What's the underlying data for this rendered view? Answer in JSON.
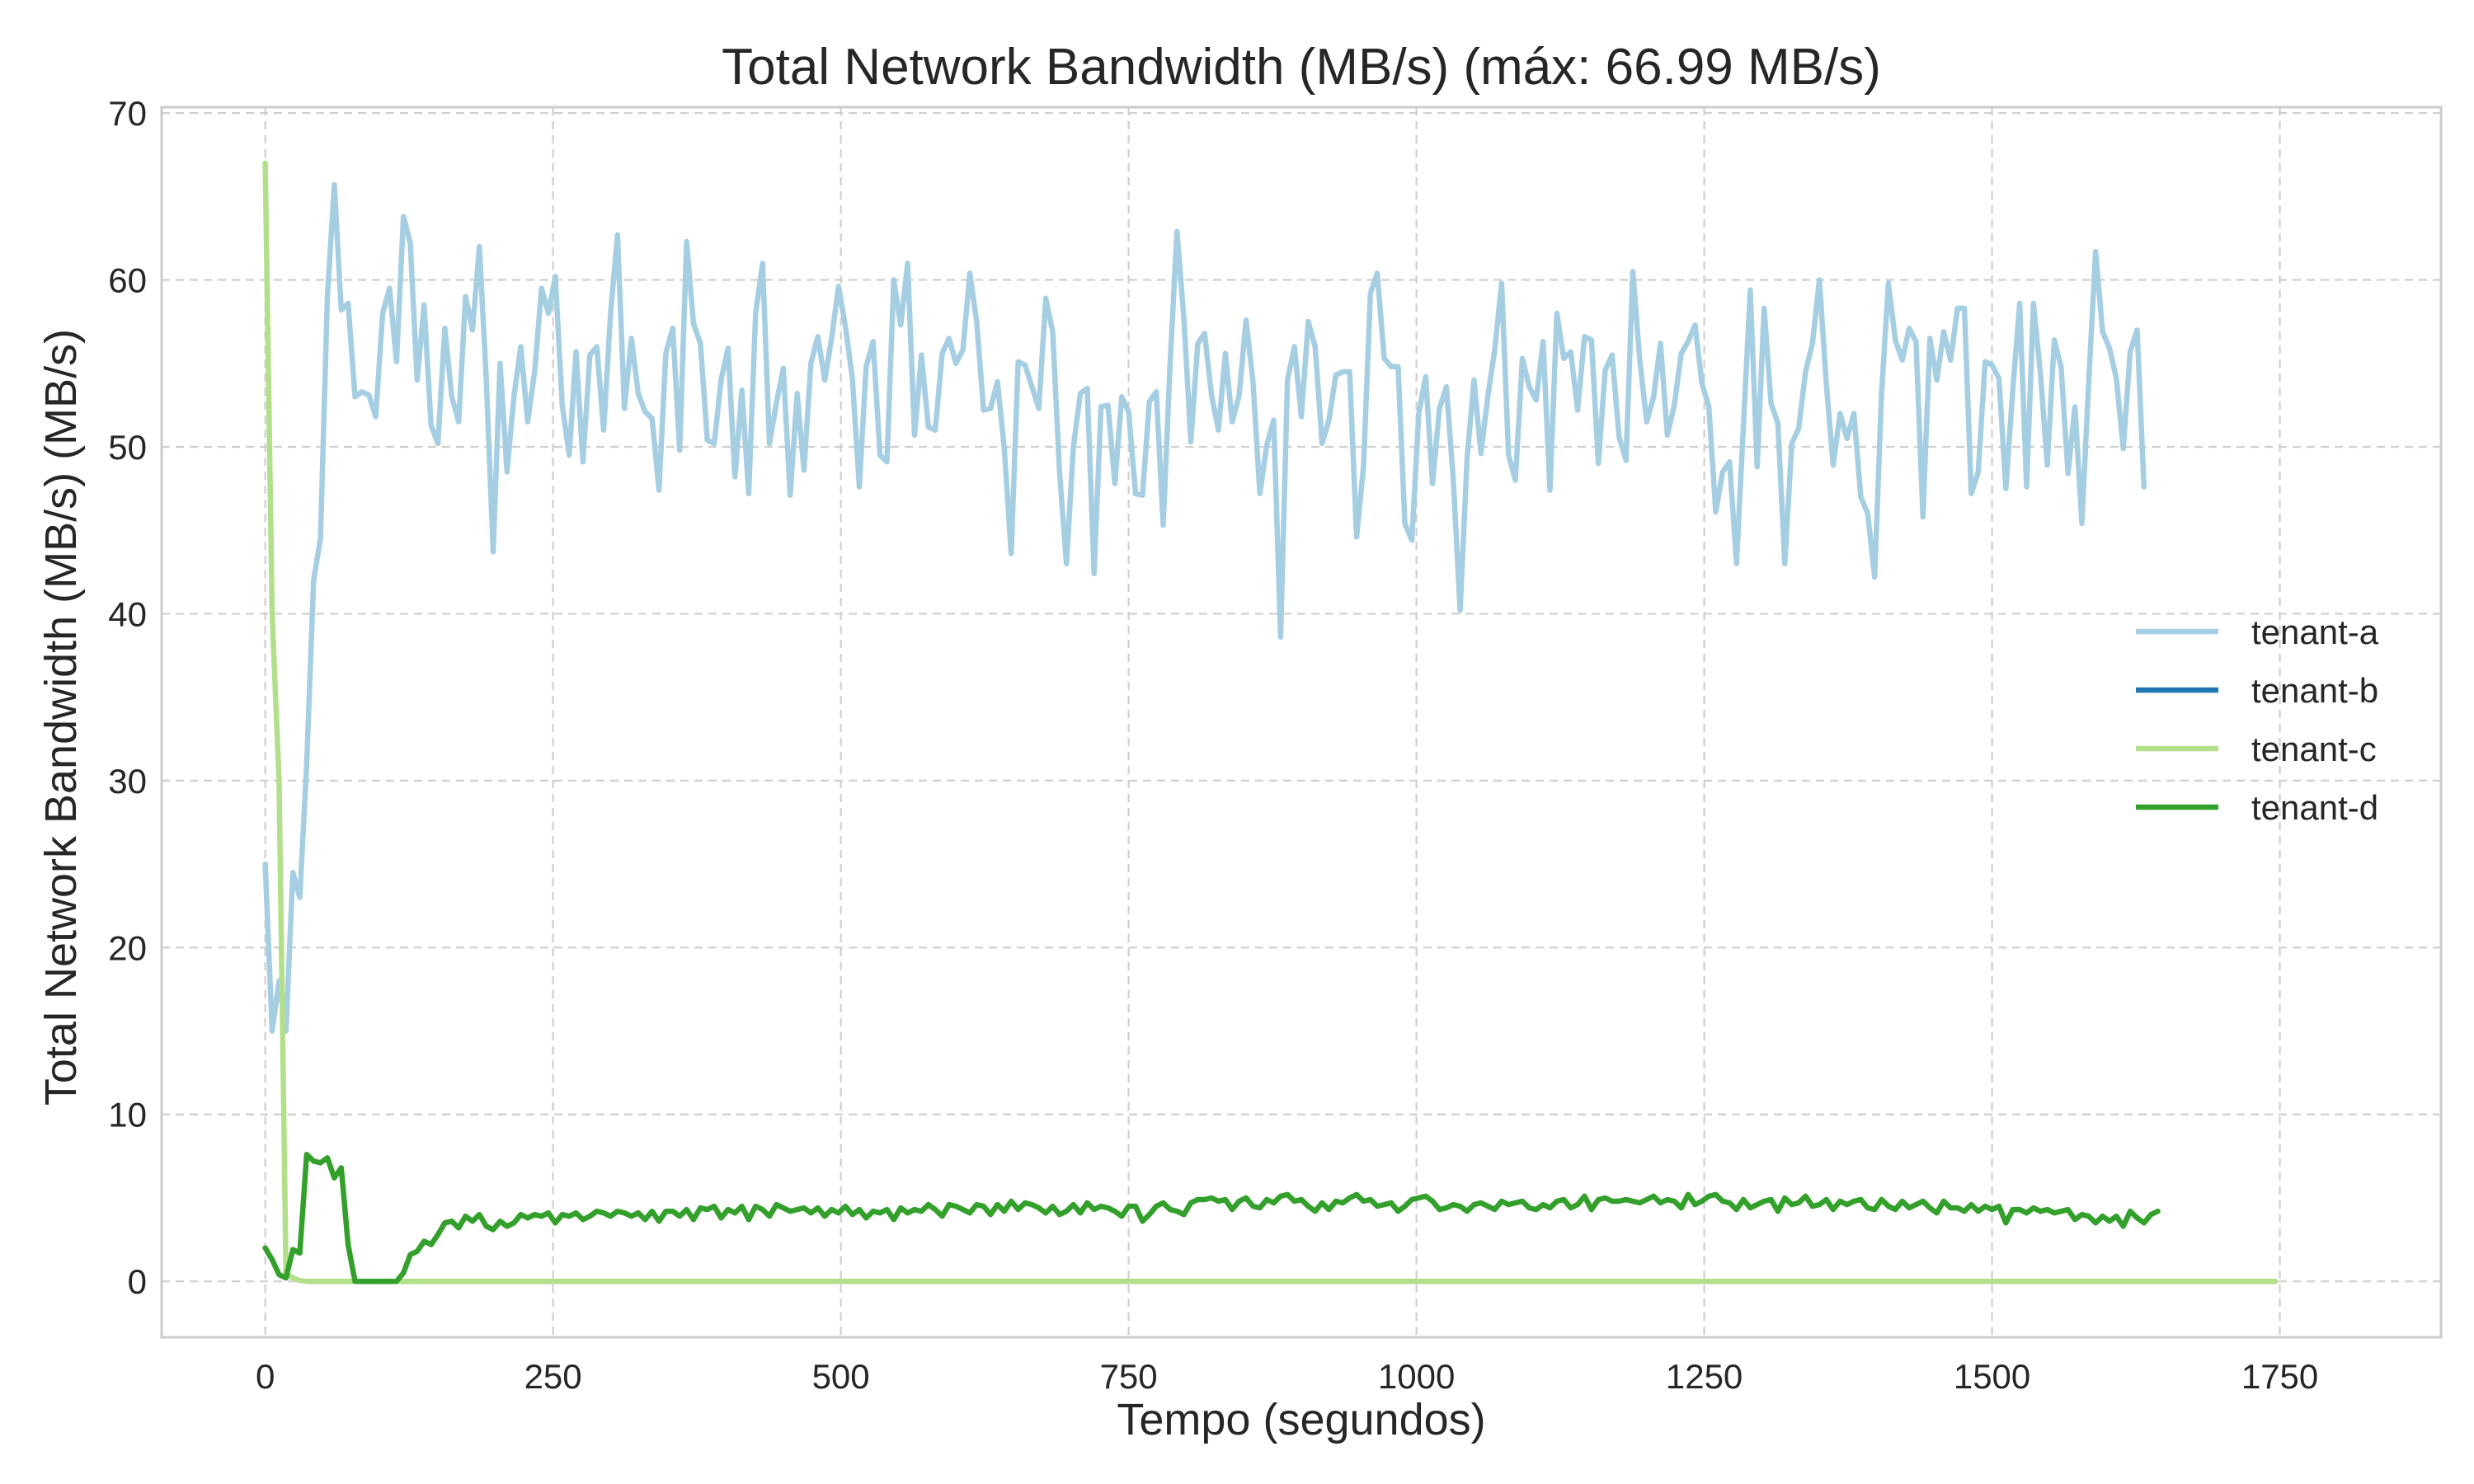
{
  "chart_data": {
    "type": "line",
    "title": "Total Network Bandwidth (MB/s) (máx: 66.99 MB/s)",
    "xlabel": "Tempo (segundos)",
    "ylabel": "Total Network Bandwidth (MB/s) (MB/s)",
    "xlim": [
      -90,
      1890
    ],
    "ylim": [
      -3.35,
      70.35
    ],
    "xticks": [
      0,
      250,
      500,
      750,
      1000,
      1250,
      1500,
      1750
    ],
    "xtick_labels": [
      "0",
      "250",
      "500",
      "750",
      "1000",
      "1250",
      "1500",
      "1750"
    ],
    "yticks": [
      0,
      10,
      20,
      30,
      40,
      50,
      60,
      70
    ],
    "ytick_labels": [
      "0",
      "10",
      "20",
      "30",
      "40",
      "50",
      "60",
      "70"
    ],
    "grid": true,
    "legend_position": "center-right",
    "x_step": 6,
    "x_start": 0,
    "series": [
      {
        "name": "tenant-a",
        "color": "#a6cee3",
        "values": [
          25.0,
          15.0,
          18.0,
          15.0,
          24.5,
          23.0,
          31.0,
          42.0,
          44.5,
          59.0,
          65.7,
          58.2,
          58.6,
          53.0,
          53.3,
          53.1,
          51.8,
          58.0,
          59.5,
          55.1,
          63.8,
          62.2,
          54.0,
          58.5,
          51.3,
          50.2,
          57.1,
          53.0,
          51.5,
          59.0,
          57.0,
          62.0,
          54.0,
          43.7,
          55.0,
          48.5,
          53.0,
          56.0,
          51.5,
          54.5,
          59.5,
          58.0,
          60.2,
          52.5,
          49.5,
          55.7,
          49.1,
          55.5,
          56.0,
          51.0,
          58.0,
          62.7,
          52.3,
          56.5,
          53.2,
          52.1,
          51.7,
          47.4,
          55.6,
          57.1,
          49.8,
          62.3,
          57.4,
          56.2,
          50.4,
          50.2,
          54.0,
          55.9,
          48.2,
          53.4,
          47.2,
          58.0,
          61.0,
          50.2,
          52.6,
          54.7,
          47.1,
          53.2,
          48.6,
          55.0,
          56.6,
          54.0,
          56.5,
          59.6,
          57.2,
          54.1,
          47.6,
          54.8,
          56.3,
          49.5,
          49.1,
          60.0,
          57.3,
          61.0,
          50.7,
          55.5,
          51.2,
          51.0,
          55.6,
          56.5,
          55.0,
          55.8,
          60.4,
          57.5,
          52.2,
          52.3,
          53.9,
          49.9,
          43.6,
          55.1,
          54.9,
          53.6,
          52.3,
          58.9,
          56.9,
          48.5,
          43.0,
          50.0,
          53.2,
          53.5,
          42.4,
          52.4,
          52.5,
          47.8,
          53.0,
          52.1,
          47.2,
          47.1,
          52.7,
          53.3,
          45.3,
          55.0,
          62.9,
          57.7,
          50.3,
          56.2,
          56.8,
          53.1,
          51.0,
          55.6,
          51.5,
          53.1,
          57.6,
          53.9,
          47.2,
          50.1,
          51.6,
          38.6,
          54.0,
          56.0,
          51.8,
          57.5,
          56.0,
          50.2,
          51.6,
          54.3,
          54.5,
          54.5,
          44.6,
          48.8,
          59.2,
          60.4,
          55.3,
          54.8,
          54.8,
          45.4,
          44.4,
          52.0,
          54.2,
          47.8,
          52.3,
          53.6,
          48.0,
          40.2,
          49.3,
          54.0,
          49.6,
          53.0,
          55.8,
          59.8,
          49.5,
          48.0,
          55.3,
          53.6,
          52.8,
          56.3,
          47.4,
          58.0,
          55.3,
          55.7,
          52.2,
          56.6,
          56.4,
          49.0,
          54.6,
          55.5,
          50.6,
          49.2,
          60.5,
          55.2,
          51.5,
          53.0,
          56.2,
          50.7,
          52.5,
          55.6,
          56.3,
          57.3,
          53.8,
          52.4,
          46.1,
          48.5,
          49.1,
          43.0,
          51.2,
          59.4,
          48.8,
          58.3,
          52.6,
          51.4,
          43.0,
          50.2,
          51.1,
          54.5,
          56.2,
          60.0,
          53.8,
          48.9,
          52.0,
          50.5,
          52.0,
          47.0,
          46.0,
          42.2,
          53.2,
          59.8,
          56.4,
          55.2,
          57.1,
          56.3,
          45.8,
          56.5,
          54.0,
          56.9,
          55.2,
          58.3,
          58.3,
          47.2,
          48.5,
          55.1,
          54.9,
          54.1,
          47.5,
          53.4,
          58.6,
          47.6,
          58.6,
          54.4,
          48.9,
          56.4,
          54.8,
          48.4,
          52.4,
          45.4,
          53.9,
          61.7,
          56.9,
          55.9,
          54.1,
          49.9,
          55.7,
          57.0,
          47.6
        ]
      },
      {
        "name": "tenant-b",
        "color": "#1f78b4",
        "values": []
      },
      {
        "name": "tenant-c",
        "color": "#b2df8a",
        "values": [
          66.99,
          40.0,
          30.0,
          0.5,
          0.2,
          0.05,
          0.0,
          0.0,
          0.0,
          0.0,
          0.0,
          0.0,
          0.0,
          0.0,
          0.0,
          0.0,
          0.0,
          0.0,
          0.0,
          0.0,
          0.0,
          0.0,
          0.0,
          0.0,
          0.0,
          0.0,
          0.0,
          0.0,
          0.0,
          0.0,
          0.0,
          0.0,
          0.0,
          0.0,
          0.0,
          0.0,
          0.0,
          0.0,
          0.0,
          0.0,
          0.0,
          0.0,
          0.0,
          0.0,
          0.0,
          0.0,
          0.0,
          0.0,
          0.0,
          0.0,
          0.0,
          0.0,
          0.0,
          0.0,
          0.0,
          0.0,
          0.0,
          0.0,
          0.0,
          0.0,
          0.0,
          0.0,
          0.0,
          0.0,
          0.0,
          0.0,
          0.0,
          0.0,
          0.0,
          0.0,
          0.0,
          0.0,
          0.0,
          0.0,
          0.0,
          0.0,
          0.0,
          0.0,
          0.0,
          0.0,
          0.0,
          0.0,
          0.0,
          0.0,
          0.0,
          0.0,
          0.0,
          0.0,
          0.0,
          0.0,
          0.0,
          0.0,
          0.0,
          0.0,
          0.0,
          0.0,
          0.0,
          0.0,
          0.0,
          0.0,
          0.0,
          0.0,
          0.0,
          0.0,
          0.0,
          0.0,
          0.0,
          0.0,
          0.0,
          0.0,
          0.0,
          0.0,
          0.0,
          0.0,
          0.0,
          0.0,
          0.0,
          0.0,
          0.0,
          0.0,
          0.0,
          0.0,
          0.0,
          0.0,
          0.0,
          0.0,
          0.0,
          0.0,
          0.0,
          0.0,
          0.0,
          0.0,
          0.0,
          0.0,
          0.0,
          0.0,
          0.0,
          0.0,
          0.0,
          0.0,
          0.0,
          0.0,
          0.0,
          0.0,
          0.0,
          0.0,
          0.0,
          0.0,
          0.0,
          0.0,
          0.0,
          0.0,
          0.0,
          0.0,
          0.0,
          0.0,
          0.0,
          0.0,
          0.0,
          0.0,
          0.0,
          0.0,
          0.0,
          0.0,
          0.0,
          0.0,
          0.0,
          0.0,
          0.0,
          0.0,
          0.0,
          0.0,
          0.0,
          0.0,
          0.0,
          0.0,
          0.0,
          0.0,
          0.0,
          0.0,
          0.0,
          0.0,
          0.0,
          0.0,
          0.0,
          0.0,
          0.0,
          0.0,
          0.0,
          0.0,
          0.0,
          0.0,
          0.0,
          0.0,
          0.0,
          0.0,
          0.0,
          0.0,
          0.0,
          0.0,
          0.0,
          0.0,
          0.0,
          0.0,
          0.0,
          0.0,
          0.0,
          0.0,
          0.0,
          0.0,
          0.0,
          0.0,
          0.0,
          0.0,
          0.0,
          0.0,
          0.0,
          0.0,
          0.0,
          0.0,
          0.0,
          0.0,
          0.0,
          0.0,
          0.0,
          0.0,
          0.0,
          0.0,
          0.0,
          0.0,
          0.0,
          0.0,
          0.0,
          0.0,
          0.0,
          0.0,
          0.0,
          0.0,
          0.0,
          0.0,
          0.0,
          0.0,
          0.0,
          0.0,
          0.0,
          0.0,
          0.0,
          0.0,
          0.0,
          0.0,
          0.0,
          0.0,
          0.0,
          0.0,
          0.0,
          0.0,
          0.0,
          0.0,
          0.0,
          0.0,
          0.0,
          0.0,
          0.0,
          0.0,
          0.0,
          0.0,
          0.0,
          0.0,
          0.0,
          0.0,
          0.0,
          0.0,
          0.0,
          0.0,
          0.0,
          0.0,
          0.0,
          0.0,
          0.0,
          0.0,
          0.0,
          0.0,
          0.0,
          0.0,
          0.0,
          0.0,
          0.0,
          0.0,
          0.0,
          0.0,
          0.0,
          0.0
        ]
      },
      {
        "name": "tenant-d",
        "color": "#33a02c",
        "values": [
          2.0,
          1.3,
          0.4,
          0.2,
          1.9,
          1.7,
          7.6,
          7.2,
          7.1,
          7.4,
          6.2,
          6.8,
          2.2,
          0.0,
          0.0,
          0.0,
          0.0,
          0.0,
          0.0,
          0.0,
          0.5,
          1.6,
          1.8,
          2.4,
          2.2,
          2.8,
          3.5,
          3.6,
          3.2,
          3.9,
          3.6,
          4.0,
          3.3,
          3.1,
          3.6,
          3.3,
          3.5,
          4.0,
          3.8,
          4.0,
          3.9,
          4.1,
          3.5,
          4.0,
          3.9,
          4.1,
          3.7,
          3.9,
          4.2,
          4.1,
          3.9,
          4.2,
          4.1,
          3.9,
          4.1,
          3.7,
          4.2,
          3.6,
          4.2,
          4.2,
          3.9,
          4.3,
          3.7,
          4.4,
          4.3,
          4.5,
          3.8,
          4.3,
          4.1,
          4.5,
          3.7,
          4.5,
          4.3,
          3.9,
          4.6,
          4.4,
          4.2,
          4.3,
          4.4,
          4.1,
          4.4,
          3.9,
          4.3,
          4.1,
          4.5,
          4.0,
          4.3,
          3.8,
          4.2,
          4.1,
          4.3,
          3.7,
          4.4,
          4.1,
          4.3,
          4.2,
          4.6,
          4.3,
          3.9,
          4.6,
          4.5,
          4.3,
          4.1,
          4.6,
          4.5,
          4.0,
          4.6,
          4.2,
          4.8,
          4.3,
          4.7,
          4.6,
          4.4,
          4.1,
          4.5,
          4.0,
          4.2,
          4.6,
          4.1,
          4.7,
          4.3,
          4.5,
          4.4,
          4.2,
          3.9,
          4.5,
          4.5,
          3.6,
          4.0,
          4.5,
          4.7,
          4.3,
          4.2,
          4.0,
          4.7,
          4.9,
          4.9,
          5.0,
          4.8,
          4.9,
          4.3,
          4.8,
          5.0,
          4.5,
          4.4,
          4.9,
          4.7,
          5.1,
          5.2,
          4.8,
          4.9,
          4.5,
          4.2,
          4.7,
          4.3,
          4.8,
          4.7,
          5.0,
          5.2,
          4.8,
          4.9,
          4.5,
          4.6,
          4.7,
          4.2,
          4.5,
          4.9,
          5.0,
          5.1,
          4.8,
          4.3,
          4.4,
          4.6,
          4.5,
          4.2,
          4.6,
          4.7,
          4.5,
          4.3,
          4.8,
          4.6,
          4.7,
          4.8,
          4.4,
          4.3,
          4.6,
          4.4,
          4.8,
          4.9,
          4.4,
          4.6,
          5.1,
          4.3,
          4.9,
          5.0,
          4.8,
          4.8,
          4.9,
          4.8,
          4.7,
          4.9,
          5.1,
          4.7,
          4.9,
          4.8,
          4.4,
          5.2,
          4.6,
          4.8,
          5.1,
          5.2,
          4.8,
          4.7,
          4.3,
          4.9,
          4.4,
          4.6,
          4.8,
          4.9,
          4.2,
          5.0,
          4.6,
          4.7,
          5.1,
          4.5,
          4.6,
          4.9,
          4.3,
          4.8,
          4.6,
          4.8,
          4.9,
          4.4,
          4.3,
          4.9,
          4.5,
          4.3,
          4.8,
          4.4,
          4.6,
          4.8,
          4.4,
          4.1,
          4.8,
          4.4,
          4.4,
          4.2,
          4.6,
          4.2,
          4.5,
          4.3,
          4.5,
          3.5,
          4.3,
          4.3,
          4.1,
          4.4,
          4.2,
          4.3,
          4.1,
          4.2,
          4.3,
          3.7,
          4.0,
          3.9,
          3.5,
          3.9,
          3.6,
          3.9,
          3.3,
          4.2,
          3.8,
          3.5,
          4.0,
          4.2
        ]
      }
    ]
  }
}
